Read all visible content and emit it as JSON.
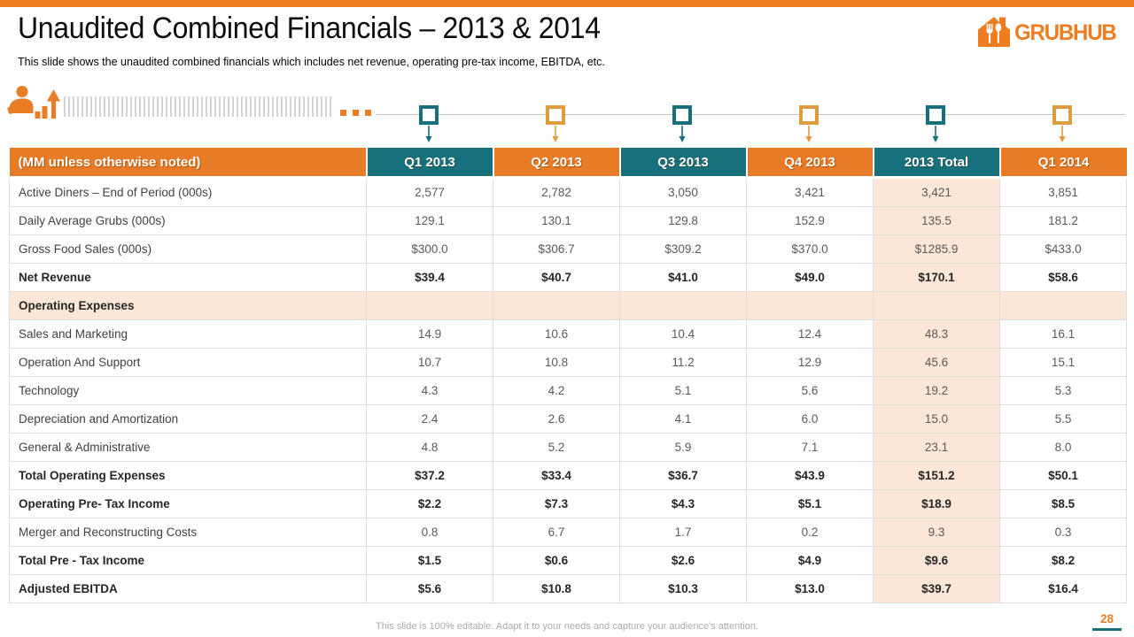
{
  "slide": {
    "title": "Unaudited Combined Financials – 2013 & 2014",
    "subtitle": "This slide shows the unaudited combined financials which includes net revenue, operating pre-tax income, EBITDA, etc.",
    "footer_note": "This slide is 100% editable. Adapt it to your needs and capture your audience's attention.",
    "page_number": "28"
  },
  "logo": {
    "text": "GRUBHUB"
  },
  "colors": {
    "orange": "#e87c26",
    "teal": "#16717d",
    "amber": "#de9c3c",
    "peach": "#fbe6d7",
    "top_bar": "#ee7e23"
  },
  "timeline": {
    "markers": [
      "teal",
      "amber",
      "teal",
      "amber",
      "teal",
      "amber"
    ]
  },
  "table": {
    "label_header": "(MM unless otherwise noted)",
    "columns": [
      {
        "label": "Q1 2013",
        "color": "teal"
      },
      {
        "label": "Q2 2013",
        "color": "orange"
      },
      {
        "label": "Q3 2013",
        "color": "teal"
      },
      {
        "label": "Q4 2013",
        "color": "orange"
      },
      {
        "label": "2013 Total",
        "color": "teal",
        "highlight": true
      },
      {
        "label": "Q1 2014",
        "color": "orange"
      }
    ],
    "rows": [
      {
        "label": "Active Diners – End  of Period (000s)",
        "bold": false,
        "section": false,
        "values": [
          "2,577",
          "2,782",
          "3,050",
          "3,421",
          "3,421",
          "3,851"
        ]
      },
      {
        "label": "Daily Average Grubs (000s)",
        "bold": false,
        "section": false,
        "values": [
          "129.1",
          "130.1",
          "129.8",
          "152.9",
          "135.5",
          "181.2"
        ]
      },
      {
        "label": "Gross Food Sales  (000s)",
        "bold": false,
        "section": false,
        "values": [
          "$300.0",
          "$306.7",
          "$309.2",
          "$370.0",
          "$1285.9",
          "$433.0"
        ]
      },
      {
        "label": "Net Revenue",
        "bold": true,
        "section": false,
        "values": [
          "$39.4",
          "$40.7",
          "$41.0",
          "$49.0",
          "$170.1",
          "$58.6"
        ]
      },
      {
        "label": "Operating Expenses",
        "bold": true,
        "section": true,
        "values": [
          "",
          "",
          "",
          "",
          "",
          ""
        ]
      },
      {
        "label": "Sales and Marketing",
        "bold": false,
        "section": false,
        "values": [
          "14.9",
          "10.6",
          "10.4",
          "12.4",
          "48.3",
          "16.1"
        ]
      },
      {
        "label": "Operation And Support",
        "bold": false,
        "section": false,
        "values": [
          "10.7",
          "10.8",
          "11.2",
          "12.9",
          "45.6",
          "15.1"
        ]
      },
      {
        "label": "Technology",
        "bold": false,
        "section": false,
        "values": [
          "4.3",
          "4.2",
          "5.1",
          "5.6",
          "19.2",
          "5.3"
        ]
      },
      {
        "label": "Depreciation and Amortization",
        "bold": false,
        "section": false,
        "values": [
          "2.4",
          "2.6",
          "4.1",
          "6.0",
          "15.0",
          "5.5"
        ]
      },
      {
        "label": "General & Administrative",
        "bold": false,
        "section": false,
        "values": [
          "4.8",
          "5.2",
          "5.9",
          "7.1",
          "23.1",
          "8.0"
        ]
      },
      {
        "label": "Total Operating Expenses",
        "bold": true,
        "section": false,
        "values": [
          "$37.2",
          "$33.4",
          "$36.7",
          "$43.9",
          "$151.2",
          "$50.1"
        ]
      },
      {
        "label": "Operating Pre- Tax Income",
        "bold": true,
        "section": false,
        "values": [
          "$2.2",
          "$7.3",
          "$4.3",
          "$5.1",
          "$18.9",
          "$8.5"
        ]
      },
      {
        "label": "Merger and Reconstructing Costs",
        "bold": false,
        "section": false,
        "values": [
          "0.8",
          "6.7",
          "1.7",
          "0.2",
          "9.3",
          "0.3"
        ]
      },
      {
        "label": "Total Pre - Tax Income",
        "bold": true,
        "section": false,
        "values": [
          "$1.5",
          "$0.6",
          "$2.6",
          "$4.9",
          "$9.6",
          "$8.2"
        ]
      },
      {
        "label": "Adjusted EBITDA",
        "bold": true,
        "section": false,
        "values": [
          "$5.6",
          "$10.8",
          "$10.3",
          "$13.0",
          "$39.7",
          "$16.4"
        ]
      }
    ]
  }
}
